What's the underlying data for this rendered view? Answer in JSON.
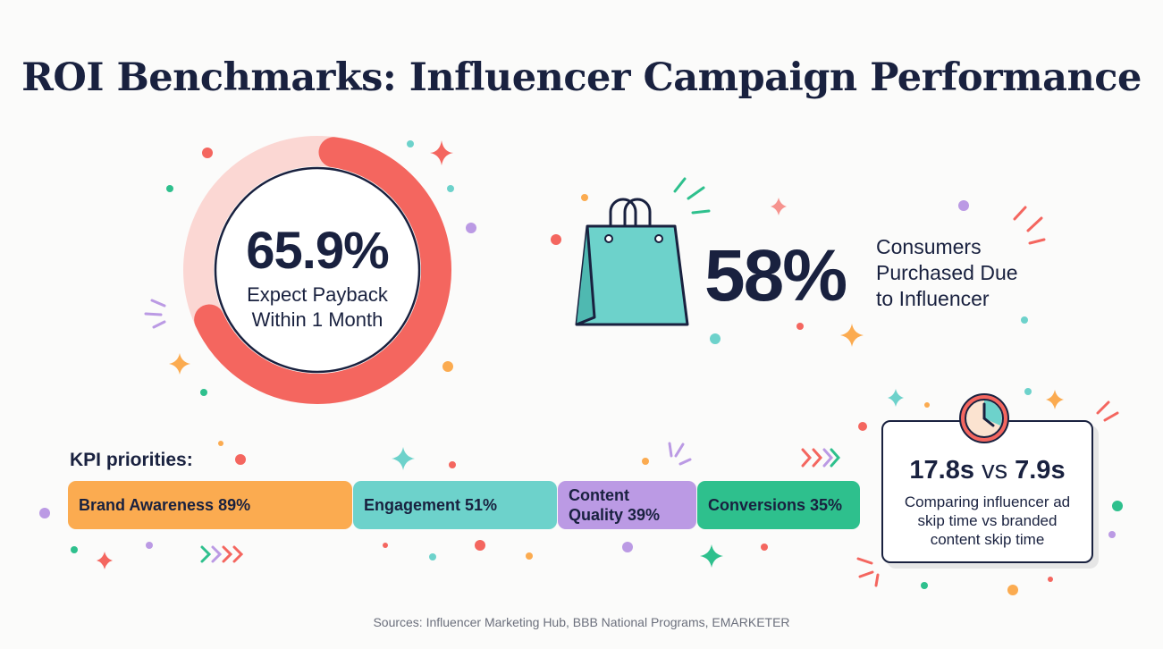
{
  "title": "ROI Benchmarks: Influencer Campaign Performance",
  "payback": {
    "value": "65.9%",
    "fraction": 0.659,
    "label_line1": "Expect Payback",
    "label_line2": "Within 1 Month"
  },
  "purchase": {
    "value": "58%",
    "label_line1": "Consumers",
    "label_line2": "Purchased Due",
    "label_line3": "to Influencer"
  },
  "kpi": {
    "title": "KPI priorities:",
    "items": [
      {
        "label": "Brand Awareness 89%",
        "color": "#fbab50"
      },
      {
        "label": "Engagement 51%",
        "color": "#6dd2cb"
      },
      {
        "label_line1": "Content",
        "label_line2": "Quality 39%",
        "color": "#bb9ae4"
      },
      {
        "label": "Conversions 35%",
        "color": "#2ec08d"
      }
    ]
  },
  "skip": {
    "a": "17.8s",
    "vs": "vs",
    "b": "7.9s",
    "desc_line1": "Comparing influencer ad",
    "desc_line2": "skip time vs branded",
    "desc_line3": "content skip time"
  },
  "sources": "Sources: Influencer Marketing Hub, BBB National Programs, EMARKETER",
  "colors": {
    "navy": "#19213f",
    "coral": "#f4665f",
    "pink": "#fbd7d3",
    "teal": "#6dd2cb",
    "orange": "#fbab50",
    "purple": "#bb9ae4",
    "green": "#2ec08d"
  }
}
